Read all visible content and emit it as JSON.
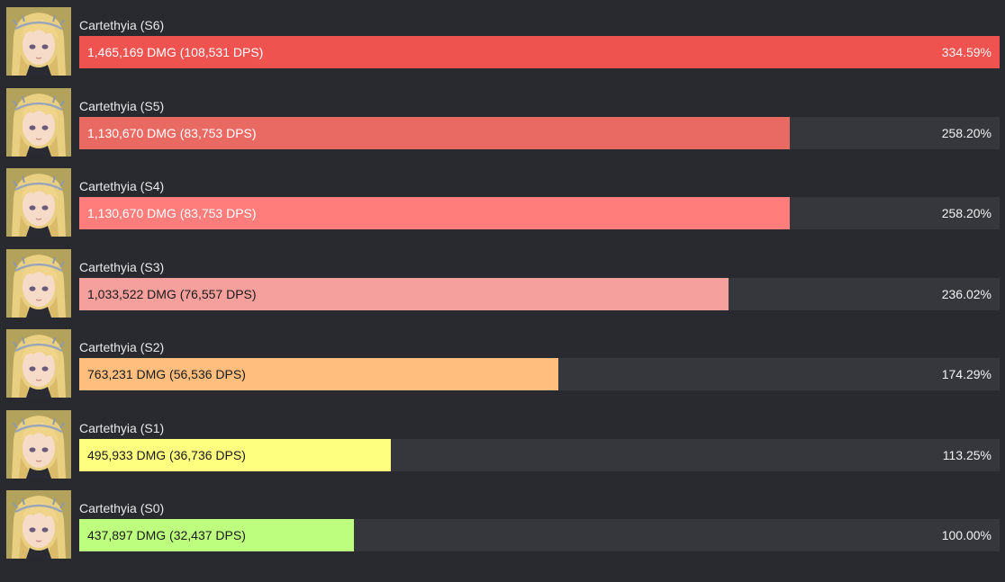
{
  "chart_data": {
    "type": "bar",
    "orientation": "horizontal",
    "unit": "DMG",
    "categories": [
      "Cartethyia (S6)",
      "Cartethyia (S5)",
      "Cartethyia (S4)",
      "Cartethyia (S3)",
      "Cartethyia (S2)",
      "Cartethyia (S1)",
      "Cartethyia (S0)"
    ],
    "values": [
      1465169,
      1130670,
      1130670,
      1033522,
      763231,
      495933,
      437897
    ],
    "bar_labels": [
      "1,465,169 DMG (108,531 DPS)",
      "1,130,670 DMG (83,753 DPS)",
      "1,130,670 DMG (83,753 DPS)",
      "1,033,522 DMG (76,557 DPS)",
      "763,231 DMG (56,536 DPS)",
      "495,933 DMG (36,736 DPS)",
      "437,897 DMG (32,437 DPS)"
    ],
    "percent_labels": [
      "334.59%",
      "258.20%",
      "258.20%",
      "236.02%",
      "174.29%",
      "113.25%",
      "100.00%"
    ],
    "colors": [
      "#ef5350",
      "#e96a62",
      "#ff7d7a",
      "#f6a09d",
      "#ffbe7d",
      "#fefe7f",
      "#bdfe7f"
    ],
    "label_colors": [
      "#ffffff",
      "#ffffff",
      "#ffffff",
      "#1a1a1a",
      "#1a1a1a",
      "#1a1a1a",
      "#1a1a1a"
    ],
    "xlim": [
      0,
      1465169
    ],
    "grid": false,
    "legend": "none",
    "icons": "character-portrait-icon"
  }
}
